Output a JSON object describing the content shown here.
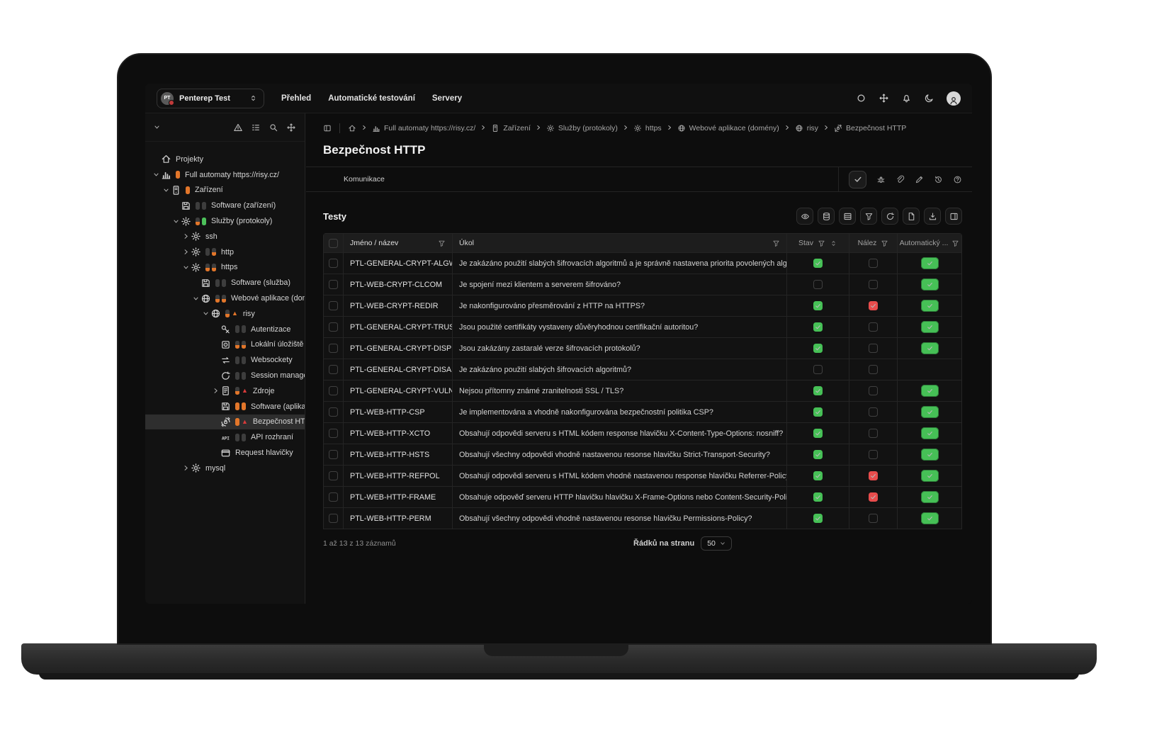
{
  "topbar": {
    "project_selector": {
      "avatar_initials": "PT",
      "label": "Penterep Test"
    },
    "nav": [
      "Přehled",
      "Automatické testování",
      "Servery"
    ],
    "right_icons": [
      "shape-circle-icon",
      "move-icon",
      "bell-icon",
      "dark-mode-icon"
    ]
  },
  "sidebar": {
    "toolbar_icons": [
      "warning-icon",
      "checklist-icon",
      "search-icon",
      "move-icon"
    ],
    "tree": [
      {
        "label": "Projekty",
        "level": 0,
        "expander": null,
        "icon": "home",
        "badges": [],
        "selected": false
      },
      {
        "label": "Full automaty https://risy.cz/",
        "level": 0,
        "expander": "down",
        "icon": "chart",
        "badges": [
          "orange"
        ],
        "selected": false
      },
      {
        "label": "Zařízení",
        "level": 1,
        "expander": "down",
        "icon": "server",
        "badges": [
          "orange"
        ],
        "selected": false
      },
      {
        "label": "Software (zařízení)",
        "level": 2,
        "expander": null,
        "icon": "floppy",
        "badges": [
          "gray",
          "gray"
        ],
        "selected": false
      },
      {
        "label": "Služby (protokoly)",
        "level": 2,
        "expander": "down",
        "icon": "gear",
        "badges": [
          "gray-orange",
          "green"
        ],
        "selected": false
      },
      {
        "label": "ssh",
        "level": 3,
        "expander": "right",
        "icon": "gear",
        "badges": [],
        "selected": false
      },
      {
        "label": "http",
        "level": 3,
        "expander": "right",
        "icon": "gear",
        "badges": [
          "gray",
          "gray-orange"
        ],
        "selected": false
      },
      {
        "label": "https",
        "level": 3,
        "expander": "down",
        "icon": "gear",
        "badges": [
          "gray-orange",
          "gray-orange"
        ],
        "selected": false
      },
      {
        "label": "Software (služba)",
        "level": 4,
        "expander": null,
        "icon": "floppy",
        "badges": [
          "gray",
          "gray"
        ],
        "selected": false
      },
      {
        "label": "Webové aplikace (domény)",
        "level": 4,
        "expander": "down",
        "icon": "globe",
        "badges": [
          "gray-orange",
          "gray-orange"
        ],
        "selected": false
      },
      {
        "label": "risy",
        "level": 5,
        "expander": "down",
        "icon": "globe",
        "badges": [
          "gray-orange",
          "warn-orange"
        ],
        "selected": false
      },
      {
        "label": "Autentizace",
        "level": 6,
        "expander": null,
        "icon": "key",
        "badges": [
          "gray",
          "gray"
        ],
        "selected": false
      },
      {
        "label": "Lokální úložiště",
        "level": 6,
        "expander": null,
        "icon": "hdd",
        "badges": [
          "gray-orange",
          "gray-orange"
        ],
        "selected": false
      },
      {
        "label": "Websockety",
        "level": 6,
        "expander": null,
        "icon": "websocket",
        "badges": [
          "gray",
          "gray"
        ],
        "selected": false
      },
      {
        "label": "Session management",
        "level": 6,
        "expander": null,
        "icon": "session",
        "badges": [
          "gray",
          "gray"
        ],
        "selected": false
      },
      {
        "label": "Zdroje",
        "level": 6,
        "expander": "right",
        "icon": "doc",
        "badges": [
          "gray-orange",
          "warn-red"
        ],
        "selected": false
      },
      {
        "label": "Software (aplikace)",
        "level": 6,
        "expander": null,
        "icon": "floppy",
        "badges": [
          "orange",
          "orange"
        ],
        "selected": false
      },
      {
        "label": "Bezpečnost HTTP",
        "level": 6,
        "expander": null,
        "icon": "security",
        "badges": [
          "orange",
          "warn-red"
        ],
        "selected": true
      },
      {
        "label": "API rozhraní",
        "level": 6,
        "expander": null,
        "icon": "api",
        "badges": [
          "gray",
          "gray"
        ],
        "selected": false
      },
      {
        "label": "Request hlavičky",
        "level": 6,
        "expander": null,
        "icon": "window",
        "badges": [],
        "selected": false
      },
      {
        "label": "mysql",
        "level": 3,
        "expander": "right",
        "icon": "gear",
        "badges": [],
        "selected": false
      }
    ]
  },
  "breadcrumb": {
    "items": [
      {
        "icon": "panel",
        "label": ""
      },
      {
        "icon": "home",
        "label": ""
      },
      {
        "icon": "chart",
        "label": "Full automaty https://risy.cz/"
      },
      {
        "icon": "server",
        "label": "Zařízení"
      },
      {
        "icon": "gear",
        "label": "Služby (protokoly)"
      },
      {
        "icon": "gear",
        "label": "https"
      },
      {
        "icon": "globe",
        "label": "Webové aplikace (domény)"
      },
      {
        "icon": "globe",
        "label": "risy"
      },
      {
        "icon": "security",
        "label": "Bezpečnost HTTP"
      }
    ]
  },
  "page": {
    "title": "Bezpečnost HTTP",
    "tab_label": "Komunikace",
    "tab_action_icons": [
      "check-button",
      "bug-icon",
      "paperclip-icon",
      "pencil-icon",
      "history-icon",
      "help-icon"
    ]
  },
  "tests": {
    "section_title": "Testy",
    "toolbar_icons": [
      "eye",
      "database",
      "rows",
      "filter",
      "refresh",
      "file",
      "download",
      "columns"
    ],
    "columns": {
      "name": "Jméno / název",
      "task": "Úkol",
      "stav": "Stav",
      "nalez": "Nález",
      "auto": "Automatický ..."
    },
    "rows": [
      {
        "name": "PTL-GENERAL-CRYPT-ALGWEAK",
        "task": "Je zakázáno použití slabých šifrovacích algoritmů a je správně nastavena priorita povolených algoritmů?",
        "stav": "green",
        "nalez": "empty",
        "auto": "green"
      },
      {
        "name": "PTL-WEB-CRYPT-CLCOM",
        "task": "Je spojení mezi klientem a serverem šifrováno?",
        "stav": "empty",
        "nalez": "empty",
        "auto": "green"
      },
      {
        "name": "PTL-WEB-CRYPT-REDIR",
        "task": "Je nakonfigurováno přesměrování z HTTP na HTTPS?",
        "stav": "green",
        "nalez": "red",
        "auto": "green"
      },
      {
        "name": "PTL-GENERAL-CRYPT-TRUST",
        "task": "Jsou použité certifikáty vystaveny důvěryhodnou certifikační autoritou?",
        "stav": "green",
        "nalez": "empty",
        "auto": "green"
      },
      {
        "name": "PTL-GENERAL-CRYPT-DISPROT",
        "task": "Jsou zakázány zastaralé verze šifrovacích protokolů?",
        "stav": "green",
        "nalez": "empty",
        "auto": "green"
      },
      {
        "name": "PTL-GENERAL-CRYPT-DISALG",
        "task": "Je zakázáno použití slabých šifrovacích algoritmů?",
        "stav": "empty",
        "nalez": "empty",
        "auto": "none"
      },
      {
        "name": "PTL-GENERAL-CRYPT-VULN",
        "task": "Nejsou přítomny známé zranitelnosti SSL / TLS?",
        "stav": "green",
        "nalez": "empty",
        "auto": "green"
      },
      {
        "name": "PTL-WEB-HTTP-CSP",
        "task": "Je implementována a vhodně nakonfigurována bezpečnostní politika CSP?",
        "stav": "green",
        "nalez": "empty",
        "auto": "green"
      },
      {
        "name": "PTL-WEB-HTTP-XCTO",
        "task": "Obsahují odpovědi serveru s HTML kódem response hlavičku X-Content-Type-Options: nosniff?",
        "stav": "green",
        "nalez": "empty",
        "auto": "green"
      },
      {
        "name": "PTL-WEB-HTTP-HSTS",
        "task": "Obsahují všechny odpovědi vhodně nastavenou resonse hlavičku Strict-Transport-Security?",
        "stav": "green",
        "nalez": "empty",
        "auto": "green"
      },
      {
        "name": "PTL-WEB-HTTP-REFPOL",
        "task": "Obsahují odpovědi serveru s HTML kódem vhodně nastavenou response hlavičku Referrer-Policy?",
        "stav": "green",
        "nalez": "red",
        "auto": "green"
      },
      {
        "name": "PTL-WEB-HTTP-FRAME",
        "task": "Obsahuje odpověď serveru HTTP hlavičku hlavičku X-Frame-Options nebo Content-Security-Policy: frame-",
        "stav": "green",
        "nalez": "red",
        "auto": "green"
      },
      {
        "name": "PTL-WEB-HTTP-PERM",
        "task": "Obsahují všechny odpovědi vhodně nastavenou resonse hlavičku Permissions-Policy?",
        "stav": "green",
        "nalez": "empty",
        "auto": "green"
      }
    ],
    "footer": {
      "records": "1 až 13 z 13 záznamů",
      "per_page_label": "Řádků na stranu",
      "per_page_value": "50"
    }
  },
  "colors": {
    "accent_green": "#46c056",
    "accent_red": "#e84c4c",
    "accent_orange": "#e2762a"
  }
}
